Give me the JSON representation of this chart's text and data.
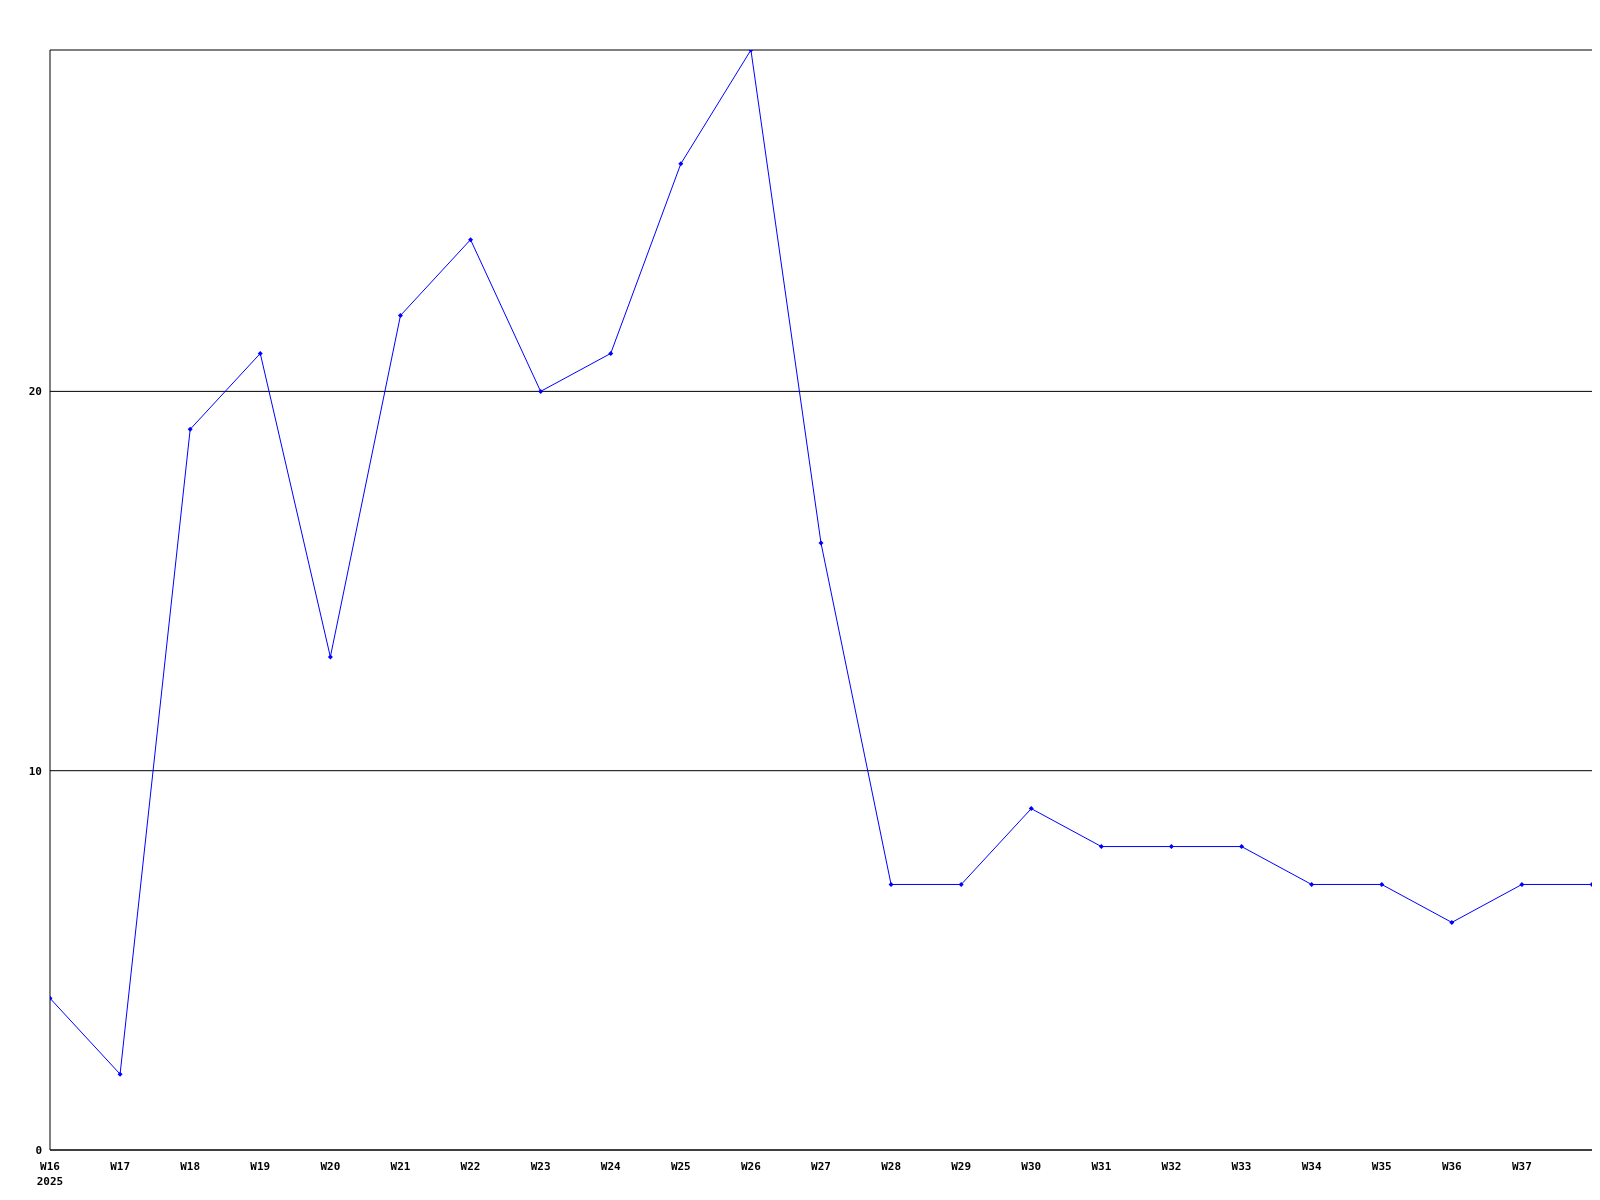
{
  "chart_data": {
    "type": "line",
    "categories": [
      "W16",
      "W17",
      "W18",
      "W19",
      "W20",
      "W21",
      "W22",
      "W23",
      "W24",
      "W25",
      "W26",
      "W27",
      "W28",
      "W29",
      "W30",
      "W31",
      "W32",
      "W33",
      "W34",
      "W35",
      "W36",
      "W37",
      null
    ],
    "series": [
      {
        "color": "#0000ff",
        "values": [
          4,
          2,
          19,
          21,
          13,
          22,
          24,
          20,
          21,
          26,
          29,
          16,
          7,
          7,
          9,
          8,
          8,
          8,
          7,
          7,
          6,
          7,
          7
        ]
      }
    ],
    "ylim": [
      0,
      29
    ],
    "yticks": [
      0,
      10,
      20
    ],
    "grid": "y",
    "marker": "diamond",
    "line_style": "solid",
    "legend": false,
    "annotations": [
      "2025"
    ]
  }
}
